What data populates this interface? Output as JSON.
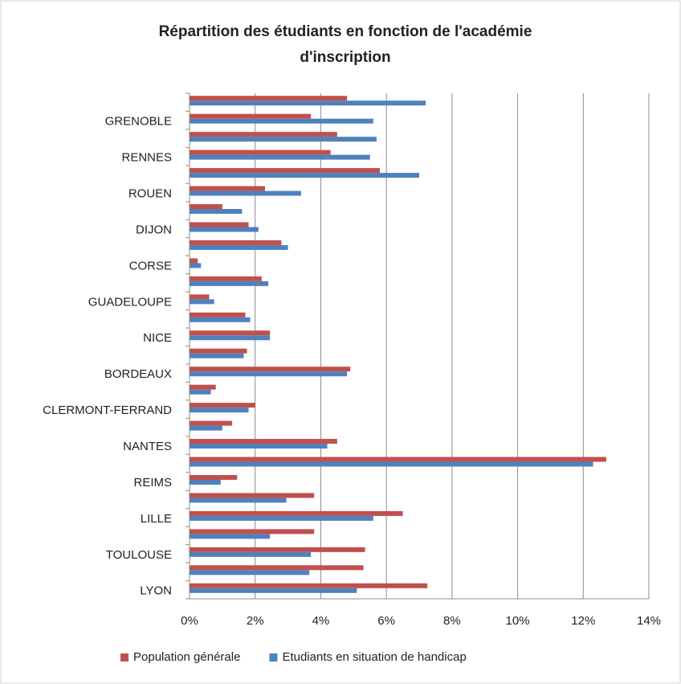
{
  "chart_data": {
    "type": "hbar",
    "title": [
      "Répartition des étudiants en fonction de l'académie",
      "d'inscription"
    ],
    "categories": [
      null,
      "GRENOBLE",
      null,
      "RENNES",
      null,
      "ROUEN",
      null,
      "DIJON",
      null,
      "CORSE",
      null,
      "GUADELOUPE",
      null,
      "NICE",
      null,
      "BORDEAUX",
      null,
      "CLERMONT-FERRAND",
      null,
      "NANTES",
      null,
      "REIMS",
      null,
      "LILLE",
      null,
      "TOULOUSE",
      null,
      "LYON"
    ],
    "series": [
      {
        "name": "Population générale",
        "color": "#c0504d",
        "values": [
          4.8,
          3.7,
          4.5,
          4.3,
          5.8,
          2.3,
          1.0,
          1.8,
          2.8,
          0.25,
          2.2,
          0.6,
          1.7,
          2.45,
          1.75,
          4.9,
          0.8,
          2.0,
          1.3,
          4.5,
          12.7,
          1.45,
          3.8,
          6.5,
          3.8,
          5.35,
          5.3,
          7.25
        ]
      },
      {
        "name": "Etudiants en situation de handicap",
        "color": "#4f81bd",
        "values": [
          7.2,
          5.6,
          5.7,
          5.5,
          7.0,
          3.4,
          1.6,
          2.1,
          3.0,
          0.35,
          2.4,
          0.75,
          1.85,
          2.45,
          1.65,
          4.8,
          0.65,
          1.8,
          1.0,
          4.2,
          12.3,
          0.95,
          2.95,
          5.6,
          2.45,
          3.7,
          3.65,
          5.1
        ]
      }
    ],
    "xlim": [
      0,
      14
    ],
    "xticks": [
      {
        "value": 0,
        "label": "0%"
      },
      {
        "value": 2,
        "label": "2%"
      },
      {
        "value": 4,
        "label": "4%"
      },
      {
        "value": 6,
        "label": "6%"
      },
      {
        "value": 8,
        "label": "8%"
      },
      {
        "value": 10,
        "label": "10%"
      },
      {
        "value": 12,
        "label": "12%"
      },
      {
        "value": 14,
        "label": "14%"
      }
    ],
    "grid": true,
    "legend": "bottom"
  }
}
